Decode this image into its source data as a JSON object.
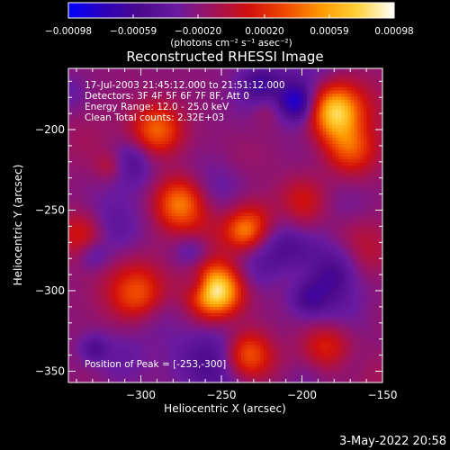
{
  "chart_data": {
    "type": "heatmap",
    "title": "Reconstructed RHESSI Image",
    "xlabel": "Heliocentric X (arcsec)",
    "ylabel": "Heliocentric Y (arcsec)",
    "xlim": [
      -345,
      -150
    ],
    "ylim": [
      -357,
      -162
    ],
    "x_ticks": [
      -300,
      -250,
      -200,
      -150
    ],
    "x_tick_labels": [
      "−300",
      "−250",
      "−200",
      "−150"
    ],
    "y_ticks": [
      -350,
      -300,
      -250,
      -200
    ],
    "y_tick_labels": [
      "−350",
      "−300",
      "−250",
      "−200"
    ],
    "colorbar": {
      "range": [
        -0.00098,
        0.00098
      ],
      "ticks": [
        -0.00098,
        -0.00059,
        -0.0002,
        0.0002,
        0.00059,
        0.00098
      ],
      "tick_labels": [
        "−0.00098",
        "−0.00059",
        "−0.00020",
        "0.00020",
        "0.00059",
        "0.00098"
      ],
      "units_label": "(photons cm⁻² s⁻¹ asec⁻²)",
      "colors": [
        "#0000ff",
        "#2e00b8",
        "#4b0a8c",
        "#6a1aa0",
        "#a0125a",
        "#d1100c",
        "#f04a00",
        "#ff9a00",
        "#ffd23c",
        "#ffffff"
      ]
    },
    "info_lines": [
      "17-Jul-2003 21:45:12.000 to 21:51:12.000",
      "Detectors: 3F 4F 5F 6F 7F 8F, Att 0",
      "Energy Range: 12.0 - 25.0 keV",
      "Clean    Total counts: 2.32E+03"
    ],
    "peak_label": "Position of Peak = [-253,-300]",
    "peak": {
      "x": -253,
      "y": -300
    },
    "sources": [
      {
        "x": -253,
        "y": -300,
        "value": 0.00098
      },
      {
        "x": -290,
        "y": -200,
        "value": 0.00059
      },
      {
        "x": -180,
        "y": -190,
        "value": 0.0007
      },
      {
        "x": -170,
        "y": -210,
        "value": 0.00055
      },
      {
        "x": -275,
        "y": -245,
        "value": 0.00065
      },
      {
        "x": -230,
        "y": -260,
        "value": 0.00045
      },
      {
        "x": -300,
        "y": -305,
        "value": 0.0004
      },
      {
        "x": -335,
        "y": -265,
        "value": 0.0005
      },
      {
        "x": -235,
        "y": -340,
        "value": 0.00075
      },
      {
        "x": -185,
        "y": -335,
        "value": 0.0004
      },
      {
        "x": -200,
        "y": -245,
        "value": 0.00035
      }
    ]
  },
  "footer": {
    "timestamp": "3-May-2022 20:58"
  }
}
